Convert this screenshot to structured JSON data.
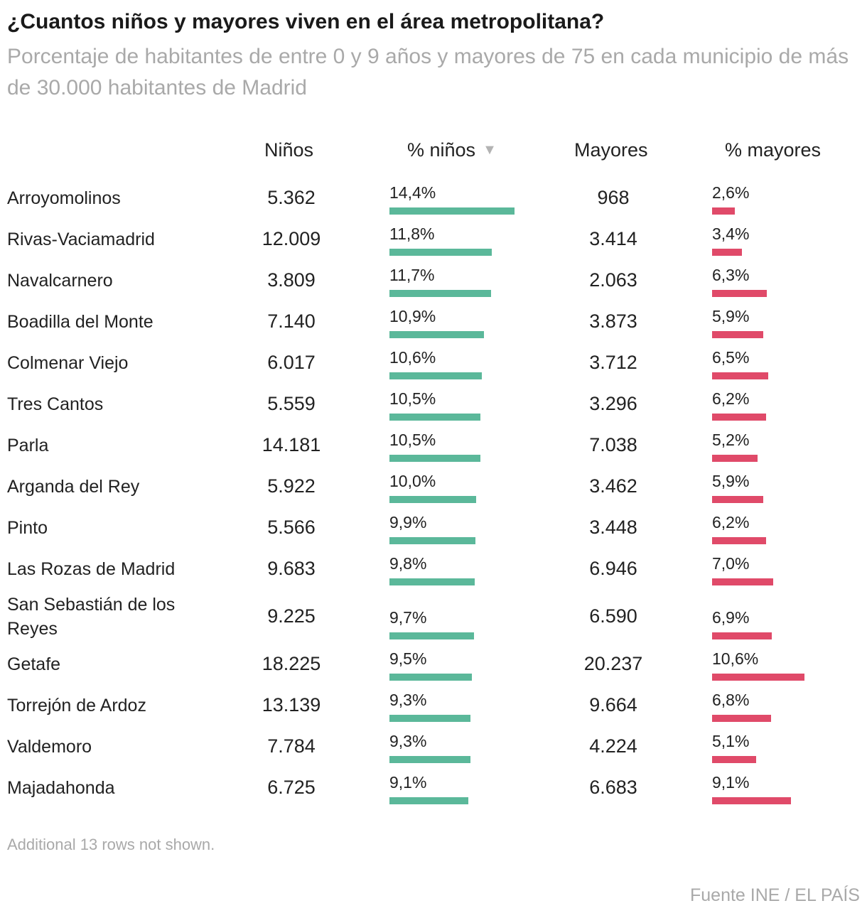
{
  "title": "¿Cuantos niños y mayores viven en el área metropolitana?",
  "subtitle": "Porcentaje de habitantes de entre 0 y 9 años y mayores de 75 en cada municipio de más de 30.000 habitantes de Madrid",
  "columns": {
    "ninos": "Niños",
    "pct_ninos": "% niños",
    "mayores": "Mayores",
    "pct_mayores": "% mayores"
  },
  "sort_icon": "triangle-down-icon",
  "colors": {
    "kids_bar": "#5bb89a",
    "old_bar": "#e04a69"
  },
  "chart_data": {
    "type": "table",
    "title": "¿Cuantos niños y mayores viven en el área metropolitana?",
    "bar_scale_max_pct": 14.4,
    "rows": [
      {
        "name": "Arroyomolinos",
        "ninos": "5.362",
        "pct_ninos": 14.4,
        "pct_ninos_label": "14,4%",
        "mayores": "968",
        "pct_mayores": 2.6,
        "pct_mayores_label": "2,6%"
      },
      {
        "name": "Rivas-Vaciamadrid",
        "ninos": "12.009",
        "pct_ninos": 11.8,
        "pct_ninos_label": "11,8%",
        "mayores": "3.414",
        "pct_mayores": 3.4,
        "pct_mayores_label": "3,4%"
      },
      {
        "name": "Navalcarnero",
        "ninos": "3.809",
        "pct_ninos": 11.7,
        "pct_ninos_label": "11,7%",
        "mayores": "2.063",
        "pct_mayores": 6.3,
        "pct_mayores_label": "6,3%"
      },
      {
        "name": "Boadilla del Monte",
        "ninos": "7.140",
        "pct_ninos": 10.9,
        "pct_ninos_label": "10,9%",
        "mayores": "3.873",
        "pct_mayores": 5.9,
        "pct_mayores_label": "5,9%"
      },
      {
        "name": "Colmenar Viejo",
        "ninos": "6.017",
        "pct_ninos": 10.6,
        "pct_ninos_label": "10,6%",
        "mayores": "3.712",
        "pct_mayores": 6.5,
        "pct_mayores_label": "6,5%"
      },
      {
        "name": "Tres Cantos",
        "ninos": "5.559",
        "pct_ninos": 10.5,
        "pct_ninos_label": "10,5%",
        "mayores": "3.296",
        "pct_mayores": 6.2,
        "pct_mayores_label": "6,2%"
      },
      {
        "name": "Parla",
        "ninos": "14.181",
        "pct_ninos": 10.5,
        "pct_ninos_label": "10,5%",
        "mayores": "7.038",
        "pct_mayores": 5.2,
        "pct_mayores_label": "5,2%"
      },
      {
        "name": "Arganda del Rey",
        "ninos": "5.922",
        "pct_ninos": 10.0,
        "pct_ninos_label": "10,0%",
        "mayores": "3.462",
        "pct_mayores": 5.9,
        "pct_mayores_label": "5,9%"
      },
      {
        "name": "Pinto",
        "ninos": "5.566",
        "pct_ninos": 9.9,
        "pct_ninos_label": "9,9%",
        "mayores": "3.448",
        "pct_mayores": 6.2,
        "pct_mayores_label": "6,2%"
      },
      {
        "name": "Las Rozas de Madrid",
        "ninos": "9.683",
        "pct_ninos": 9.8,
        "pct_ninos_label": "9,8%",
        "mayores": "6.946",
        "pct_mayores": 7.0,
        "pct_mayores_label": "7,0%"
      },
      {
        "name": "San Sebastián de los Reyes",
        "ninos": "9.225",
        "pct_ninos": 9.7,
        "pct_ninos_label": "9,7%",
        "mayores": "6.590",
        "pct_mayores": 6.9,
        "pct_mayores_label": "6,9%"
      },
      {
        "name": "Getafe",
        "ninos": "18.225",
        "pct_ninos": 9.5,
        "pct_ninos_label": "9,5%",
        "mayores": "20.237",
        "pct_mayores": 10.6,
        "pct_mayores_label": "10,6%"
      },
      {
        "name": "Torrejón de Ardoz",
        "ninos": "13.139",
        "pct_ninos": 9.3,
        "pct_ninos_label": "9,3%",
        "mayores": "9.664",
        "pct_mayores": 6.8,
        "pct_mayores_label": "6,8%"
      },
      {
        "name": "Valdemoro",
        "ninos": "7.784",
        "pct_ninos": 9.3,
        "pct_ninos_label": "9,3%",
        "mayores": "4.224",
        "pct_mayores": 5.1,
        "pct_mayores_label": "5,1%"
      },
      {
        "name": "Majadahonda",
        "ninos": "6.725",
        "pct_ninos": 9.1,
        "pct_ninos_label": "9,1%",
        "mayores": "6.683",
        "pct_mayores": 9.1,
        "pct_mayores_label": "9,1%"
      }
    ]
  },
  "footnote": "Additional 13 rows not shown.",
  "source": "Fuente INE / EL PAÍS"
}
